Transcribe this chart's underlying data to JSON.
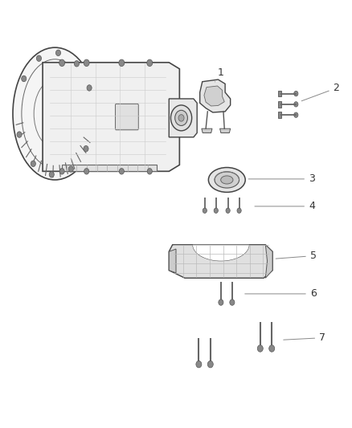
{
  "title": "",
  "background_color": "#ffffff",
  "fig_width": 4.38,
  "fig_height": 5.33,
  "dpi": 100,
  "label_fontsize": 9,
  "label_color": "#333333",
  "line_color": "#888888",
  "line_width": 0.7
}
